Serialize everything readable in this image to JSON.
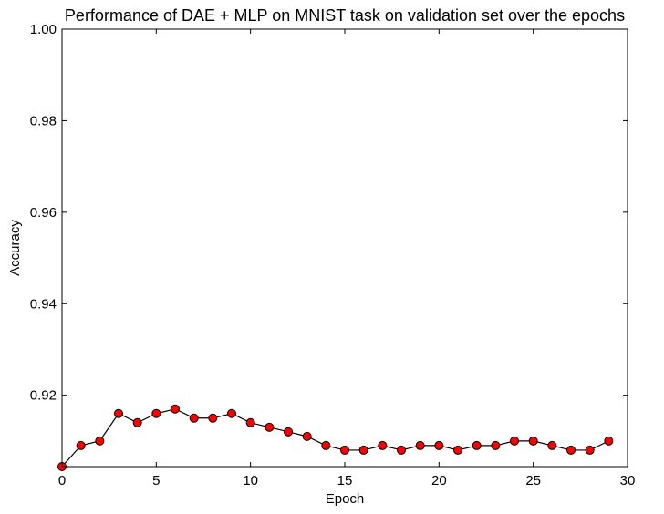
{
  "chart_data": {
    "type": "line",
    "title": "Performance of DAE + MLP on MNIST task on validation set over the epochs",
    "xlabel": "Epoch",
    "ylabel": "Accuracy",
    "xlim": [
      0,
      30
    ],
    "ylim": [
      0.9044,
      1.0
    ],
    "xticks": [
      0,
      5,
      10,
      15,
      20,
      25,
      30
    ],
    "xtick_labels": [
      "0",
      "5",
      "10",
      "15",
      "20",
      "25",
      "30"
    ],
    "yticks": [
      0.92,
      0.94,
      0.96,
      0.98,
      1.0
    ],
    "ytick_labels": [
      "0.92",
      "0.94",
      "0.96",
      "0.98",
      "1.00"
    ],
    "grid": false,
    "legend": "none",
    "series": [
      {
        "x": [
          0,
          1,
          2,
          3,
          4,
          5,
          6,
          7,
          8,
          9,
          10,
          11,
          12,
          13,
          14,
          15,
          16,
          17,
          18,
          19,
          20,
          21,
          22,
          23,
          24,
          25,
          26,
          27,
          28,
          29
        ],
        "values": [
          0.9044,
          0.909,
          0.91,
          0.916,
          0.914,
          0.916,
          0.917,
          0.915,
          0.915,
          0.916,
          0.914,
          0.913,
          0.912,
          0.911,
          0.909,
          0.908,
          0.908,
          0.909,
          0.908,
          0.909,
          0.909,
          0.908,
          0.909,
          0.909,
          0.91,
          0.91,
          0.909,
          0.908,
          0.908,
          0.91
        ],
        "line_color": "#000000",
        "marker_color": "#ff0000",
        "marker": "circle"
      }
    ]
  }
}
